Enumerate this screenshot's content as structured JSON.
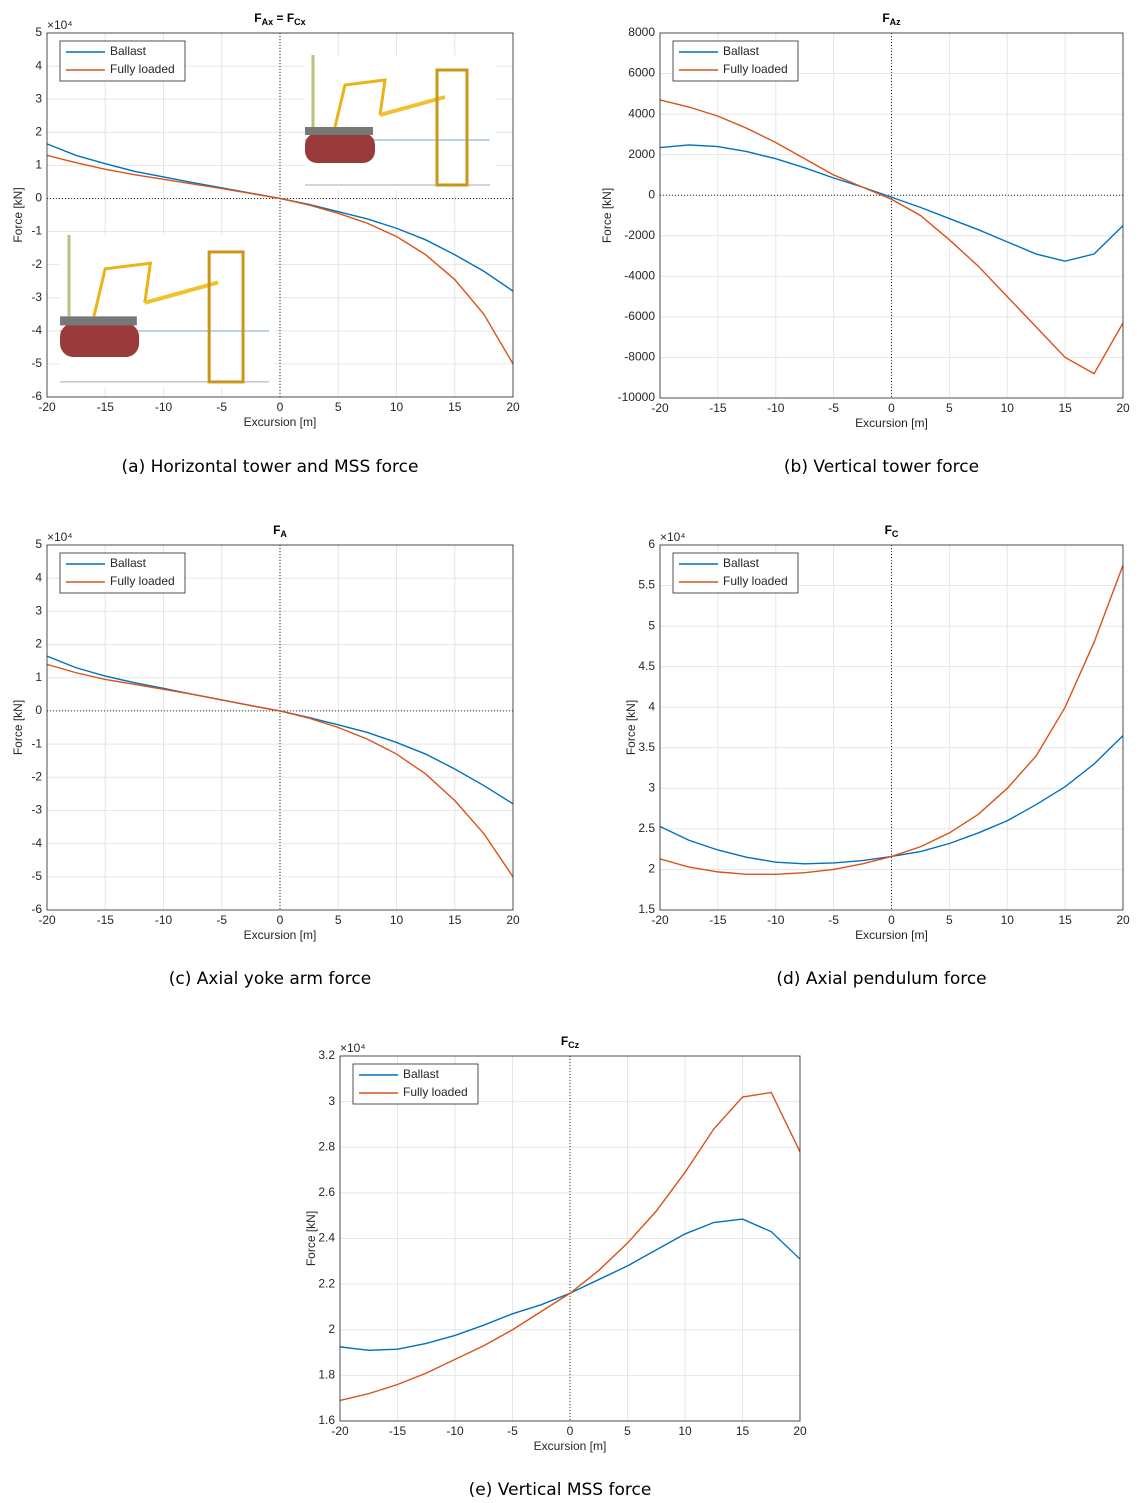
{
  "chart_data": [
    {
      "type": "line",
      "title": [
        [
          "F",
          "Ax"
        ],
        [
          " = F",
          "Cx"
        ]
      ],
      "caption": "(a) Horizontal tower and MSS force",
      "xlabel": "Excursion [m]",
      "ylabel": "Force [kN]",
      "y_multiplier": "×10⁴",
      "x": [
        -20,
        -17.5,
        -15,
        -12.5,
        -10,
        -7.5,
        -5,
        -2.5,
        0,
        2.5,
        5,
        7.5,
        10,
        12.5,
        15,
        17.5,
        20
      ],
      "series": [
        {
          "name": "Ballast",
          "color": "#0072bd",
          "values": [
            1.65,
            1.3,
            1.05,
            0.82,
            0.65,
            0.48,
            0.32,
            0.16,
            0,
            -0.18,
            -0.4,
            -0.62,
            -0.9,
            -1.25,
            -1.7,
            -2.2,
            -2.8
          ]
        },
        {
          "name": "Fully loaded",
          "color": "#d95319",
          "values": [
            1.3,
            1.08,
            0.88,
            0.72,
            0.58,
            0.44,
            0.3,
            0.15,
            0,
            -0.2,
            -0.45,
            -0.75,
            -1.15,
            -1.7,
            -2.45,
            -3.5,
            -5.0
          ]
        }
      ],
      "xlim": [
        -20,
        20
      ],
      "xticks": [
        -20,
        -15,
        -10,
        -5,
        0,
        5,
        10,
        15,
        20
      ],
      "ylim": [
        -6,
        5
      ],
      "yticks": [
        -6,
        -5,
        -4,
        -3,
        -2,
        -1,
        0,
        1,
        2,
        3,
        4,
        5
      ],
      "grid": true,
      "legend": "upper-left",
      "vline": 0,
      "hline": 0
    },
    {
      "type": "line",
      "title": [
        [
          "F",
          "Az"
        ]
      ],
      "caption": "(b) Vertical tower force",
      "xlabel": "Excursion [m]",
      "ylabel": "Force [kN]",
      "x": [
        -20,
        -17.5,
        -15,
        -12.5,
        -10,
        -7.5,
        -5,
        -2.5,
        0,
        2.5,
        5,
        7.5,
        10,
        12.5,
        15,
        17.5,
        20
      ],
      "series": [
        {
          "name": "Ballast",
          "color": "#0072bd",
          "values": [
            2350,
            2480,
            2400,
            2150,
            1800,
            1350,
            850,
            400,
            -100,
            -600,
            -1150,
            -1700,
            -2300,
            -2900,
            -3250,
            -2900,
            -1500
          ]
        },
        {
          "name": "Fully loaded",
          "color": "#d95319",
          "values": [
            4700,
            4350,
            3900,
            3300,
            2600,
            1800,
            1000,
            400,
            -200,
            -1000,
            -2200,
            -3500,
            -5000,
            -6500,
            -8000,
            -8800,
            -6300
          ]
        }
      ],
      "xlim": [
        -20,
        20
      ],
      "xticks": [
        -20,
        -15,
        -10,
        -5,
        0,
        5,
        10,
        15,
        20
      ],
      "ylim": [
        -10000,
        8000
      ],
      "yticks": [
        -10000,
        -8000,
        -6000,
        -4000,
        -2000,
        0,
        2000,
        4000,
        6000,
        8000
      ],
      "grid": true,
      "legend": "upper-left",
      "vline": 0,
      "hline": 0
    },
    {
      "type": "line",
      "title": [
        [
          "F",
          "A"
        ]
      ],
      "caption": "(c) Axial yoke arm force",
      "xlabel": "Excursion [m]",
      "ylabel": "Force [kN]",
      "y_multiplier": "×10⁴",
      "x": [
        -20,
        -17.5,
        -15,
        -12.5,
        -10,
        -7.5,
        -5,
        -2.5,
        0,
        2.5,
        5,
        7.5,
        10,
        12.5,
        15,
        17.5,
        20
      ],
      "series": [
        {
          "name": "Ballast",
          "color": "#0072bd",
          "values": [
            1.65,
            1.3,
            1.05,
            0.85,
            0.68,
            0.5,
            0.33,
            0.16,
            0,
            -0.2,
            -0.42,
            -0.65,
            -0.95,
            -1.3,
            -1.75,
            -2.25,
            -2.8
          ]
        },
        {
          "name": "Fully loaded",
          "color": "#d95319",
          "values": [
            1.4,
            1.15,
            0.95,
            0.8,
            0.65,
            0.5,
            0.33,
            0.16,
            0,
            -0.22,
            -0.5,
            -0.85,
            -1.3,
            -1.9,
            -2.7,
            -3.7,
            -5.0
          ]
        }
      ],
      "xlim": [
        -20,
        20
      ],
      "xticks": [
        -20,
        -15,
        -10,
        -5,
        0,
        5,
        10,
        15,
        20
      ],
      "ylim": [
        -6,
        5
      ],
      "yticks": [
        -6,
        -5,
        -4,
        -3,
        -2,
        -1,
        0,
        1,
        2,
        3,
        4,
        5
      ],
      "grid": true,
      "legend": "upper-left",
      "vline": 0,
      "hline": 0
    },
    {
      "type": "line",
      "title": [
        [
          "F",
          "C"
        ]
      ],
      "caption": "(d) Axial pendulum force",
      "xlabel": "Excursion [m]",
      "ylabel": "Force [kN]",
      "y_multiplier": "×10⁴",
      "x": [
        -20,
        -17.5,
        -15,
        -12.5,
        -10,
        -7.5,
        -5,
        -2.5,
        0,
        2.5,
        5,
        7.5,
        10,
        12.5,
        15,
        17.5,
        20
      ],
      "series": [
        {
          "name": "Ballast",
          "color": "#0072bd",
          "values": [
            2.53,
            2.36,
            2.24,
            2.15,
            2.09,
            2.07,
            2.08,
            2.11,
            2.16,
            2.22,
            2.32,
            2.45,
            2.6,
            2.8,
            3.02,
            3.3,
            3.65
          ]
        },
        {
          "name": "Fully loaded",
          "color": "#d95319",
          "values": [
            2.13,
            2.03,
            1.97,
            1.94,
            1.94,
            1.96,
            2.0,
            2.07,
            2.16,
            2.28,
            2.45,
            2.68,
            3.0,
            3.4,
            4.0,
            4.8,
            5.75
          ]
        }
      ],
      "xlim": [
        -20,
        20
      ],
      "xticks": [
        -20,
        -15,
        -10,
        -5,
        0,
        5,
        10,
        15,
        20
      ],
      "ylim": [
        1.5,
        6
      ],
      "yticks": [
        1.5,
        2,
        2.5,
        3,
        3.5,
        4,
        4.5,
        5,
        5.5,
        6
      ],
      "grid": true,
      "legend": "upper-left",
      "vline": 0
    },
    {
      "type": "line",
      "title": [
        [
          "F",
          "Cz"
        ]
      ],
      "caption": "(e) Vertical MSS force",
      "xlabel": "Excursion [m]",
      "ylabel": "Force [kN]",
      "y_multiplier": "×10⁴",
      "x": [
        -20,
        -17.5,
        -15,
        -12.5,
        -10,
        -7.5,
        -5,
        -2.5,
        0,
        2.5,
        5,
        7.5,
        10,
        12.5,
        15,
        17.5,
        20
      ],
      "series": [
        {
          "name": "Ballast",
          "color": "#0072bd",
          "values": [
            1.925,
            1.91,
            1.915,
            1.94,
            1.975,
            2.02,
            2.07,
            2.11,
            2.16,
            2.22,
            2.28,
            2.35,
            2.42,
            2.47,
            2.485,
            2.43,
            2.31
          ]
        },
        {
          "name": "Fully loaded",
          "color": "#d95319",
          "values": [
            1.69,
            1.72,
            1.76,
            1.81,
            1.87,
            1.93,
            2.0,
            2.08,
            2.16,
            2.26,
            2.38,
            2.52,
            2.69,
            2.88,
            3.02,
            3.04,
            2.78
          ]
        }
      ],
      "xlim": [
        -20,
        20
      ],
      "xticks": [
        -20,
        -15,
        -10,
        -5,
        0,
        5,
        10,
        15,
        20
      ],
      "ylim": [
        1.6,
        3.2
      ],
      "yticks": [
        1.6,
        1.8,
        2,
        2.2,
        2.4,
        2.6,
        2.8,
        3,
        3.2
      ],
      "grid": true,
      "legend": "upper-left",
      "vline": 0
    }
  ]
}
